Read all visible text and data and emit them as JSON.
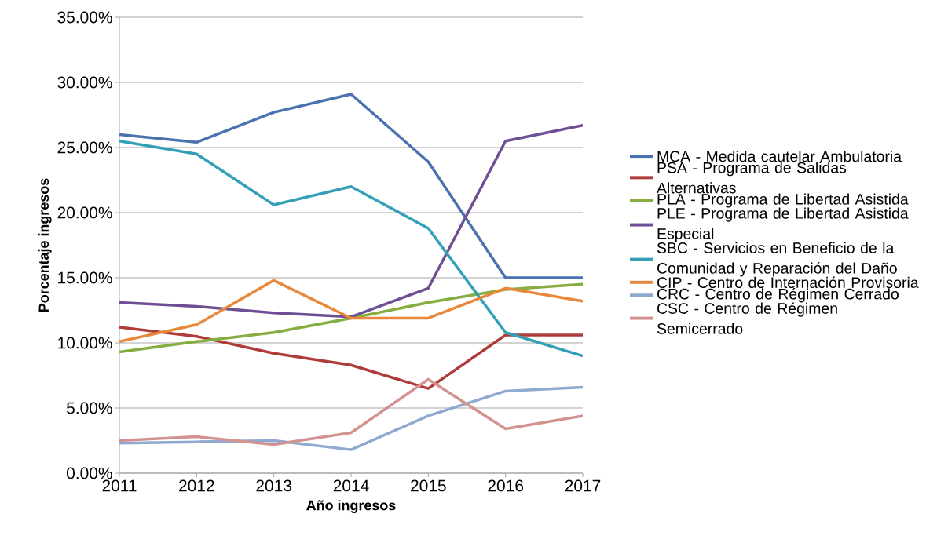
{
  "chart_data": {
    "type": "line",
    "xlabel": "Año ingresos",
    "ylabel": "Porcentaje ingresos",
    "x": [
      2011,
      2012,
      2013,
      2014,
      2015,
      2016,
      2017
    ],
    "xlim": [
      2011,
      2017
    ],
    "xticks": [
      2011,
      2012,
      2013,
      2014,
      2015,
      2016,
      2017
    ],
    "ylim": [
      0,
      35
    ],
    "yticks": [
      {
        "value": 0,
        "label": "0.00%"
      },
      {
        "value": 5,
        "label": "5.00%"
      },
      {
        "value": 10,
        "label": "10.00%"
      },
      {
        "value": 15,
        "label": "15.00%"
      },
      {
        "value": 20,
        "label": "20.00%"
      },
      {
        "value": 25,
        "label": "25.00%"
      },
      {
        "value": 30,
        "label": "30.00%"
      },
      {
        "value": 35,
        "label": "35.00%"
      }
    ],
    "grid": "y",
    "legend": "right",
    "marker": "none",
    "line_style": "solid",
    "series": [
      {
        "name": "MCA - Medida cautelar Ambulatoria",
        "color": "#4a72b0",
        "values": [
          26.0,
          25.4,
          27.7,
          29.1,
          23.9,
          15.0,
          15.0
        ]
      },
      {
        "name": "PSA - Programa de Salidas Alternativas",
        "color": "#b03c3a",
        "values": [
          11.2,
          10.5,
          9.2,
          8.3,
          6.5,
          10.6,
          10.6
        ]
      },
      {
        "name": "PLA - Programa de Libertad Asistida",
        "color": "#86ad3f",
        "values": [
          9.3,
          10.1,
          10.8,
          11.9,
          13.1,
          14.1,
          14.5
        ]
      },
      {
        "name": "PLE - Programa de Libertad Asistida Especial",
        "color": "#6f4f94",
        "values": [
          13.1,
          12.8,
          12.3,
          12.0,
          14.2,
          25.5,
          26.7
        ]
      },
      {
        "name": "SBC - Servicios en Beneficio de la Comunidad y Reparación del Daño",
        "color": "#34a0b8",
        "values": [
          25.5,
          24.5,
          20.6,
          22.0,
          18.8,
          10.8,
          9.0
        ]
      },
      {
        "name": "CIP - Centro de Internación Provisoria",
        "color": "#e8883a",
        "values": [
          10.1,
          11.4,
          14.8,
          11.9,
          11.9,
          14.2,
          13.2
        ]
      },
      {
        "name": "CRC - Centro de  Régimen Cerrado",
        "color": "#8fa9d0",
        "values": [
          2.3,
          2.4,
          2.5,
          1.8,
          4.4,
          6.3,
          6.6
        ]
      },
      {
        "name": "CSC - Centro de Régimen Semicerrado",
        "color": "#d29290",
        "values": [
          2.5,
          2.8,
          2.2,
          3.1,
          7.2,
          3.4,
          4.4
        ]
      }
    ]
  }
}
